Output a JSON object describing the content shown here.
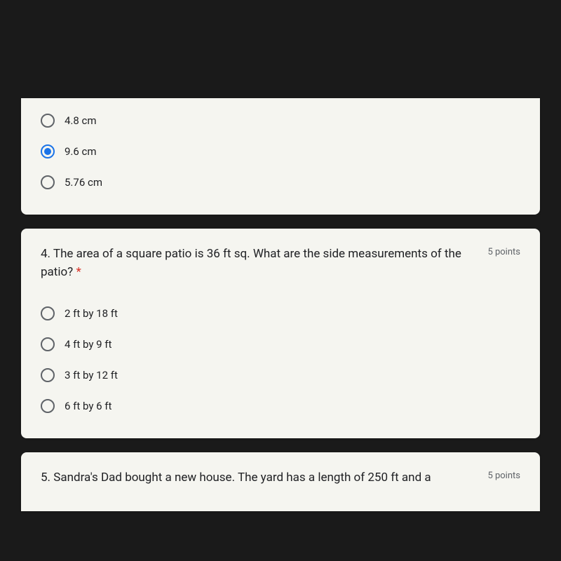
{
  "card1": {
    "options": [
      {
        "label": "4.8 cm",
        "selected": false
      },
      {
        "label": "9.6 cm",
        "selected": true
      },
      {
        "label": "5.76 cm",
        "selected": false
      }
    ]
  },
  "card2": {
    "question_number": "4.",
    "question_text": "4. The area of a square patio is 36 ft sq. What are the side measurements of the patio? ",
    "required_mark": "*",
    "points": "5 points",
    "options": [
      {
        "label": "2 ft by 18 ft",
        "selected": false
      },
      {
        "label": "4 ft by 9 ft",
        "selected": false
      },
      {
        "label": "3 ft by 12 ft",
        "selected": false
      },
      {
        "label": "6 ft by 6 ft",
        "selected": false
      }
    ]
  },
  "card3": {
    "question_text": "5. Sandra's Dad bought a new house. The yard has a length of 250 ft and a",
    "points": "5 points"
  },
  "colors": {
    "background": "#1a1a1a",
    "card_bg": "#f5f5f0",
    "text": "#202124",
    "secondary_text": "#5f6368",
    "radio_selected": "#1a73e8",
    "required": "#d93025"
  }
}
